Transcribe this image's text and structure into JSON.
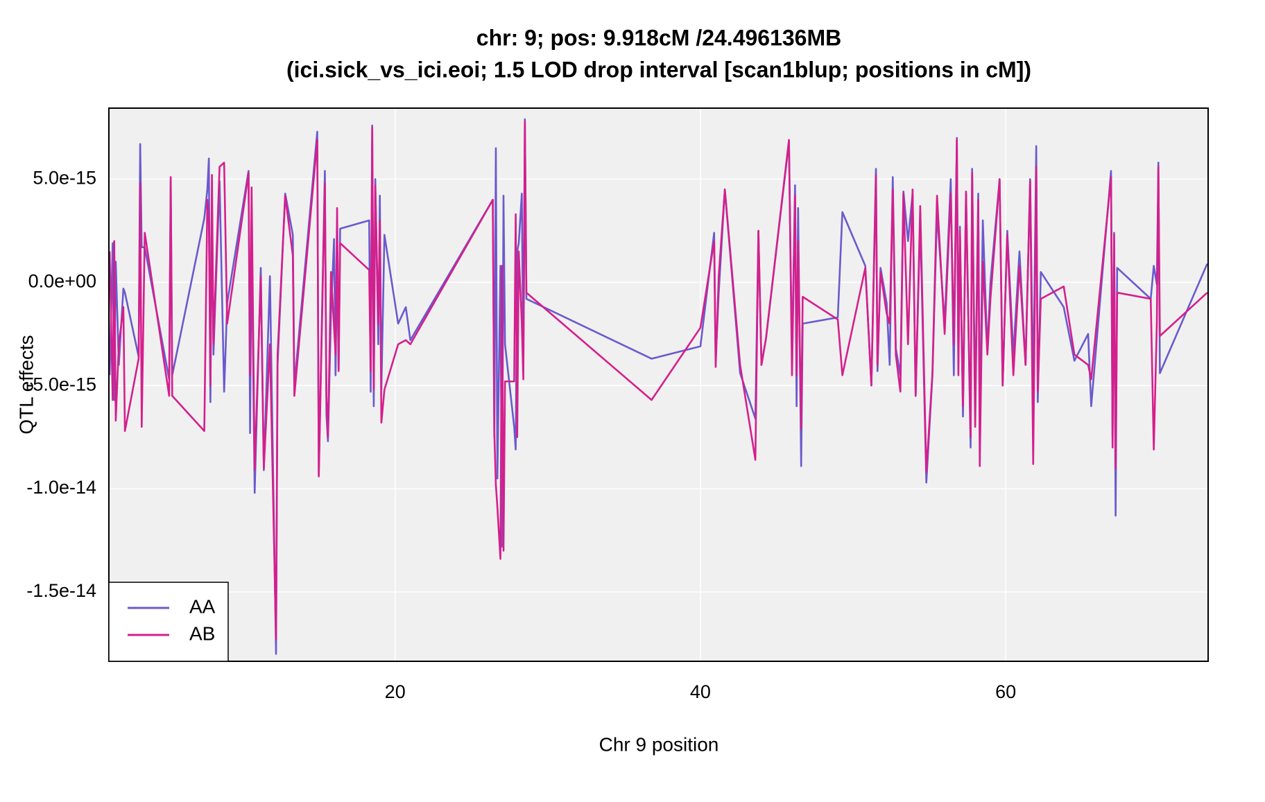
{
  "chart_data": {
    "type": "line",
    "title": [
      "chr: 9; pos: 9.918cM /24.496136MB",
      "(ici.sick_vs_ici.eoi; 1.5 LOD drop interval [scan1blup; positions in cM])"
    ],
    "x_label": "Chr 9 position",
    "y_label": "QTL effects",
    "xlim": [
      1.25,
      73.26
    ],
    "ylim": [
      -1.836e-14,
      8.44e-15
    ],
    "xticks": [
      20,
      40,
      60
    ],
    "yticks": [
      {
        "value": -1.5e-14,
        "label": "-1.5e-14"
      },
      {
        "value": -1e-14,
        "label": "-1.0e-14"
      },
      {
        "value": -5e-15,
        "label": "-5.0e-15"
      },
      {
        "value": 0,
        "label": "0.0e+00"
      },
      {
        "value": 5e-15,
        "label": "5.0e-15"
      }
    ],
    "grid": true,
    "legend": "bottom-left",
    "x": [
      1.3,
      1.5,
      1.6,
      1.7,
      1.9,
      2.2,
      2.3,
      3.2,
      3.3,
      3.4,
      3.6,
      5.2,
      5.3,
      5.4,
      7.5,
      7.7,
      7.8,
      7.9,
      8.0,
      8.1,
      8.5,
      8.8,
      9.0,
      10.4,
      10.5,
      10.6,
      10.8,
      11.2,
      11.4,
      11.8,
      12.2,
      12.3,
      12.8,
      13.3,
      13.4,
      14.9,
      15.0,
      15.4,
      15.5,
      15.6,
      15.8,
      16.0,
      16.1,
      16.2,
      16.3,
      16.4,
      18.3,
      18.4,
      18.5,
      18.6,
      18.7,
      18.9,
      19.0,
      19.1,
      19.3,
      20.2,
      20.7,
      21.0,
      26.4,
      26.5,
      26.6,
      26.7,
      26.9,
      27.0,
      27.1,
      27.2,
      27.8,
      27.9,
      28.0,
      28.1,
      28.3,
      28.4,
      28.5,
      28.6,
      36.8,
      40.0,
      40.9,
      41.0,
      41.2,
      41.6,
      42.6,
      43.6,
      43.8,
      44.0,
      44.3,
      45.8,
      46.0,
      46.2,
      46.3,
      46.4,
      46.6,
      46.7,
      49.0,
      49.3,
      50.8,
      51.2,
      51.5,
      51.6,
      51.8,
      52.2,
      52.4,
      52.6,
      52.8,
      53.1,
      53.3,
      53.6,
      53.9,
      54.1,
      54.4,
      54.8,
      55.2,
      55.5,
      56.0,
      56.4,
      56.6,
      56.8,
      56.9,
      57.0,
      57.2,
      57.4,
      57.7,
      57.8,
      58.0,
      58.2,
      58.3,
      58.5,
      58.8,
      59.0,
      59.6,
      59.8,
      60.1,
      60.5,
      60.9,
      61.3,
      61.6,
      61.8,
      62.0,
      62.1,
      62.3,
      63.8,
      64.5,
      65.4,
      65.6,
      66.9,
      67.0,
      67.1,
      67.2,
      67.3,
      69.5,
      69.7,
      69.9,
      70.0,
      70.1,
      73.2
    ],
    "series": [
      {
        "name": "AA",
        "color": "#6a5acd",
        "values": [
          -4.5e-15,
          1.9e-15,
          -5.7e-15,
          1e-15,
          -4e-15,
          -3e-16,
          -5e-16,
          -3.6e-15,
          6.7e-15,
          1.7e-15,
          1.7e-15,
          -4.7e-15,
          5e-15,
          -4.5e-15,
          3.1e-15,
          4.5e-15,
          6e-15,
          -5.8e-15,
          4e-15,
          -3.5e-15,
          4.9e-15,
          -5.3e-15,
          -1e-15,
          5.4e-15,
          -7.3e-15,
          2.4e-15,
          -1.02e-14,
          7e-16,
          -9.1e-15,
          3e-16,
          -1.8e-14,
          -4e-15,
          4.3e-15,
          2.3e-15,
          -5e-15,
          7.3e-15,
          -9.3e-15,
          5.4e-15,
          -6.4e-15,
          -7.7e-15,
          -1.5e-15,
          2.1e-15,
          -4.5e-15,
          1.5e-15,
          -4.2e-15,
          2.6e-15,
          3e-15,
          -5.3e-15,
          7.6e-15,
          -6e-15,
          5e-15,
          -3e-15,
          4.2e-15,
          -5.2e-15,
          2.3e-15,
          -2e-15,
          -1.2e-15,
          -2.8e-15,
          4e-15,
          -7.5e-15,
          6.5e-15,
          -9.5e-15,
          8e-16,
          -1.28e-14,
          4.2e-15,
          -3e-15,
          -7e-15,
          -8.1e-15,
          1.5e-15,
          1.9e-15,
          4.3e-15,
          -4.3e-15,
          7.9e-15,
          -8e-16,
          -3.7e-15,
          -3.1e-15,
          2.4e-15,
          -3.8e-15,
          -5e-16,
          4.5e-15,
          -4.4e-15,
          -6.6e-15,
          2.5e-15,
          -4e-15,
          -2.7e-15,
          6.8e-15,
          -3.7e-15,
          4.7e-15,
          -6e-15,
          3.6e-15,
          -8.9e-15,
          -2e-15,
          -1.7e-15,
          3.4e-15,
          8e-16,
          -5e-15,
          5.5e-15,
          -4.3e-15,
          7e-16,
          -1e-15,
          -4e-15,
          5.1e-15,
          -3.2e-15,
          -4.5e-15,
          4.4e-15,
          2e-15,
          4.3e-15,
          -5.5e-15,
          3e-15,
          -9.7e-15,
          -4.5e-15,
          3.4e-15,
          -2e-15,
          5e-15,
          -4.5e-15,
          7e-15,
          -4e-15,
          2.7e-15,
          -6.5e-15,
          4.3e-15,
          -8e-15,
          5.5e-15,
          -6e-15,
          4.3e-15,
          -7.2e-15,
          3e-15,
          -3.3e-15,
          0,
          5e-15,
          -5e-15,
          2.5e-15,
          -3.5e-15,
          1.5e-15,
          -4e-15,
          5e-15,
          -5.5e-15,
          6.6e-15,
          -5.8e-15,
          5e-16,
          -1.2e-15,
          -3.8e-15,
          -2.5e-15,
          -6e-15,
          5.4e-15,
          -7.5e-15,
          2.4e-15,
          -1.13e-14,
          7e-16,
          -8e-16,
          8e-16,
          -1e-16,
          5.8e-15,
          -4.4e-15,
          9e-16
        ]
      },
      {
        "name": "AB",
        "color": "#d41f8c",
        "values": [
          1.5e-15,
          -5.7e-15,
          2e-15,
          -6.7e-15,
          -3e-15,
          -1.2e-15,
          -7.2e-15,
          -3.7e-15,
          4.8e-15,
          -7e-15,
          2.4e-15,
          -5.5e-15,
          5.1e-15,
          -5.5e-15,
          -7.2e-15,
          4e-15,
          3e-15,
          -5e-15,
          5.2e-15,
          -3e-15,
          5.6e-15,
          5.8e-15,
          -2e-15,
          5.3e-15,
          -4.5e-15,
          4.6e-15,
          -9.1e-15,
          3e-16,
          -9e-15,
          -3e-15,
          -1.73e-14,
          -3.5e-15,
          4.2e-15,
          1.3e-15,
          -5.5e-15,
          6.9e-15,
          -9.4e-15,
          4.8e-15,
          -5.5e-15,
          -7.5e-15,
          5e-16,
          -2.2e-15,
          -3.5e-15,
          3.6e-15,
          -4.3e-15,
          1.9e-15,
          6e-16,
          -4.3e-15,
          7.5e-15,
          -5.2e-15,
          4.7e-15,
          -2e-15,
          3e-15,
          -6.8e-15,
          -5.2e-15,
          -3e-15,
          -2.8e-15,
          -3e-15,
          4e-15,
          -7.3e-15,
          -9.8e-15,
          -1.09e-14,
          -1.34e-14,
          8e-16,
          -1.3e-14,
          -4.8e-15,
          -4.8e-15,
          3.3e-15,
          -7.5e-15,
          1.5e-15,
          -2e-15,
          -4.7e-15,
          7.8e-15,
          -5e-16,
          -5.7e-15,
          -2.2e-15,
          2e-15,
          -4.1e-15,
          3e-16,
          4.5e-15,
          -4e-15,
          -8.6e-15,
          2.5e-15,
          -4e-15,
          -2.7e-15,
          6.9e-15,
          -4.5e-15,
          4.2e-15,
          -4.5e-15,
          2e-15,
          -7.1e-15,
          -7e-16,
          -1.8e-15,
          -4.5e-15,
          7e-16,
          -5e-15,
          5.2e-15,
          -4e-15,
          5e-16,
          -1.5e-15,
          -2e-15,
          4.5e-15,
          -3.5e-15,
          -5.3e-15,
          4.3e-15,
          -3e-15,
          4.5e-15,
          -5.5e-15,
          3.7e-15,
          -9.2e-15,
          -4.4e-15,
          4.2e-15,
          -2.5e-15,
          4.3e-15,
          -3e-15,
          6.9e-15,
          -4.5e-15,
          2.5e-15,
          -6e-15,
          4.4e-15,
          -7.5e-15,
          5.3e-15,
          -7e-15,
          4e-15,
          -8.9e-15,
          1e-15,
          -3.5e-15,
          -8e-16,
          5e-15,
          -5e-15,
          2.3e-15,
          -4.5e-15,
          8e-16,
          -4e-15,
          4.9e-15,
          -8.8e-15,
          5.6e-15,
          -5.3e-15,
          -8e-16,
          -2e-16,
          -3.5e-15,
          -4e-15,
          -4.7e-15,
          5.1e-15,
          -8e-15,
          2.3e-15,
          -9e-15,
          -5e-16,
          -8e-16,
          -8.1e-15,
          -2e-15,
          5.6e-15,
          -2.6e-15,
          -5e-16
        ]
      }
    ]
  }
}
